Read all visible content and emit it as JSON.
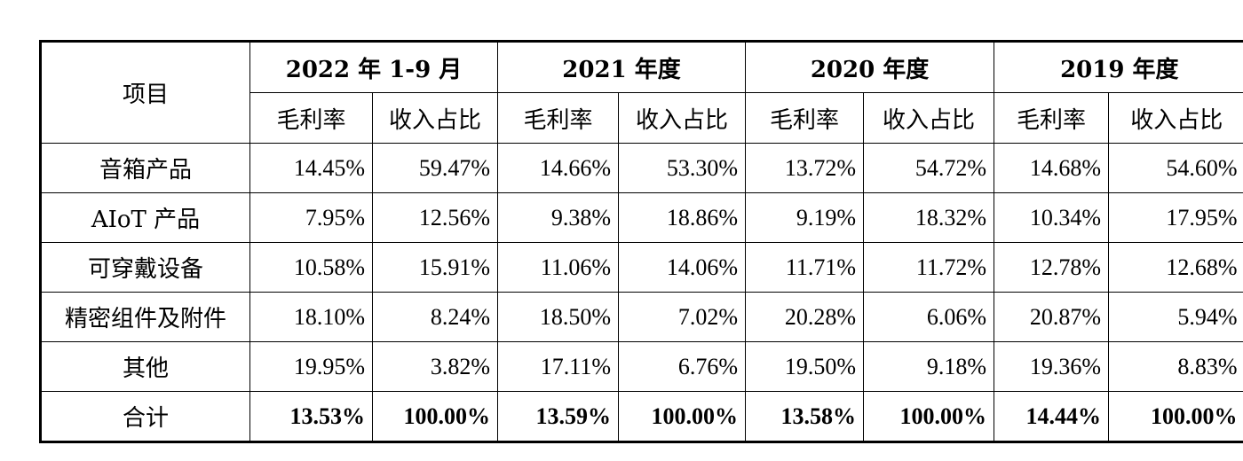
{
  "table": {
    "item_header": "项目",
    "periods": [
      {
        "label": "2022 年 1-9 月"
      },
      {
        "label": "2021 年度"
      },
      {
        "label": "2020 年度"
      },
      {
        "label": "2019 年度"
      }
    ],
    "sub_headers": [
      "毛利率",
      "收入占比"
    ],
    "rows": [
      {
        "label": "音箱产品",
        "values": [
          "14.45%",
          "59.47%",
          "14.66%",
          "53.30%",
          "13.72%",
          "54.72%",
          "14.68%",
          "54.60%"
        ]
      },
      {
        "label": "AIoT 产品",
        "values": [
          "7.95%",
          "12.56%",
          "9.38%",
          "18.86%",
          "9.19%",
          "18.32%",
          "10.34%",
          "17.95%"
        ]
      },
      {
        "label": "可穿戴设备",
        "values": [
          "10.58%",
          "15.91%",
          "11.06%",
          "14.06%",
          "11.71%",
          "11.72%",
          "12.78%",
          "12.68%"
        ]
      },
      {
        "label": "精密组件及附件",
        "values": [
          "18.10%",
          "8.24%",
          "18.50%",
          "7.02%",
          "20.28%",
          "6.06%",
          "20.87%",
          "5.94%"
        ]
      },
      {
        "label": "其他",
        "values": [
          "19.95%",
          "3.82%",
          "17.11%",
          "6.76%",
          "19.50%",
          "9.18%",
          "19.36%",
          "8.83%"
        ]
      }
    ],
    "total": {
      "label": "合计",
      "values": [
        "13.53%",
        "100.00%",
        "13.59%",
        "100.00%",
        "13.58%",
        "100.00%",
        "14.44%",
        "100.00%"
      ]
    }
  }
}
